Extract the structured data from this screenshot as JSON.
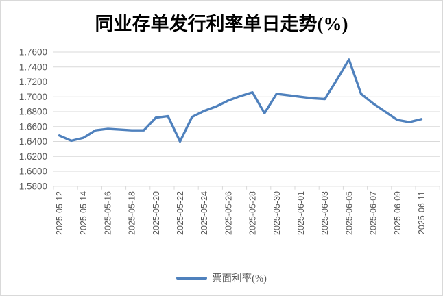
{
  "chart_data": {
    "type": "line",
    "title": "同业存单发行利率单日走势(%)",
    "xlabel": "",
    "ylabel": "",
    "ylim": [
      1.58,
      1.76
    ],
    "y_tick_step": 0.02,
    "y_tick_labels": [
      "1.7600",
      "1.7400",
      "1.7200",
      "1.7000",
      "1.6800",
      "1.6600",
      "1.6400",
      "1.6200",
      "1.6000",
      "1.5800"
    ],
    "grid": "horizontal",
    "legend_position": "bottom",
    "x": [
      "2025-05-12",
      "2025-05-13",
      "2025-05-14",
      "2025-05-15",
      "2025-05-16",
      "2025-05-17",
      "2025-05-18",
      "2025-05-19",
      "2025-05-20",
      "2025-05-21",
      "2025-05-22",
      "2025-05-23",
      "2025-05-24",
      "2025-05-25",
      "2025-05-26",
      "2025-05-27",
      "2025-05-28",
      "2025-05-29",
      "2025-05-30",
      "2025-05-31",
      "2025-06-01",
      "2025-06-02",
      "2025-06-03",
      "2025-06-04",
      "2025-06-05",
      "2025-06-06",
      "2025-06-07",
      "2025-06-08",
      "2025-06-09",
      "2025-06-10",
      "2025-06-11"
    ],
    "x_tick_labels": [
      "2025-05-12",
      "2025-05-14",
      "2025-05-16",
      "2025-05-18",
      "2025-05-20",
      "2025-05-22",
      "2025-05-24",
      "2025-05-26",
      "2025-05-28",
      "2025-05-30",
      "2025-06-01",
      "2025-06-03",
      "2025-06-05",
      "2025-06-07",
      "2025-06-09",
      "2025-06-11"
    ],
    "series": [
      {
        "name": "票面利率(%)",
        "color": "#4f81bd",
        "values": [
          1.648,
          1.641,
          1.645,
          1.655,
          1.657,
          1.656,
          1.655,
          1.655,
          1.672,
          1.674,
          1.64,
          1.673,
          1.681,
          1.687,
          1.695,
          1.701,
          1.706,
          1.678,
          1.704,
          1.702,
          1.7,
          1.698,
          1.697,
          1.723,
          1.75,
          1.704,
          1.691,
          1.68,
          1.669,
          1.666,
          1.67
        ]
      }
    ],
    "colors": {
      "line": "#4f81bd",
      "gridline": "#d9d9d9",
      "axis_line": "#d9d9d9",
      "axis_text": "#595959",
      "title_text": "#000000",
      "background": "#ffffff"
    }
  }
}
